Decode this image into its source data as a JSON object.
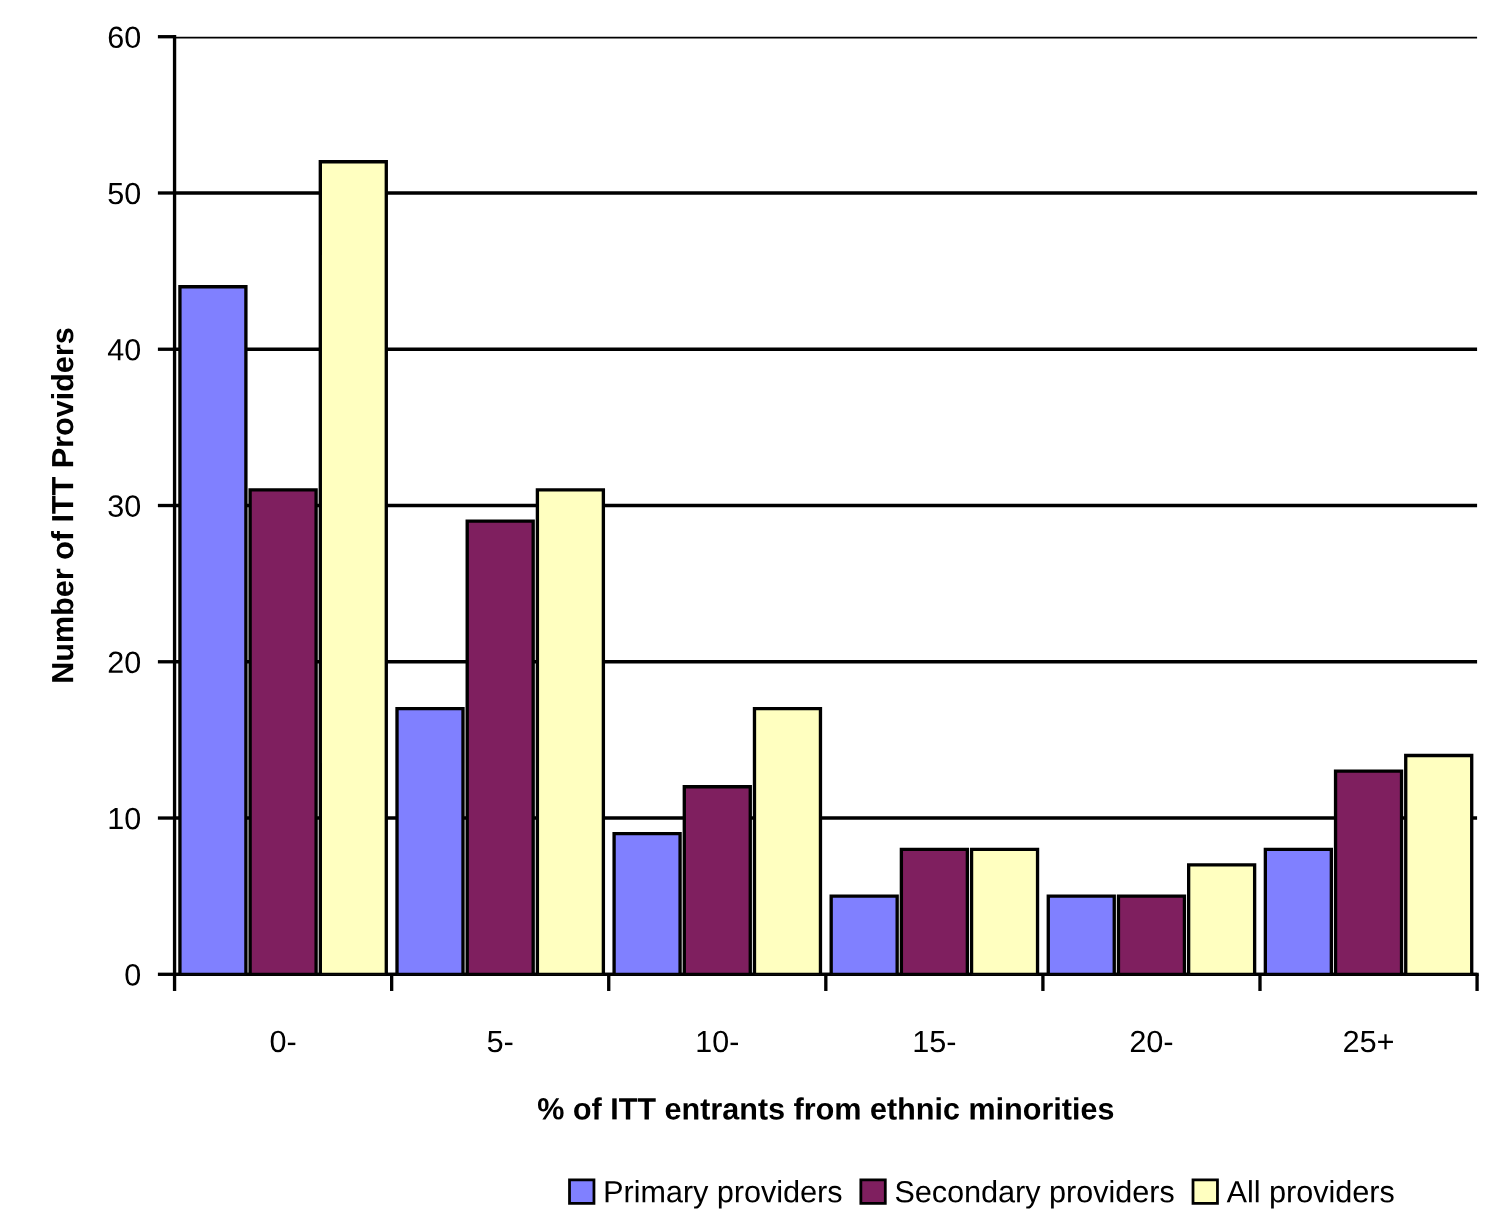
{
  "chart_data": {
    "type": "bar",
    "xlabel": "% of ITT entrants from ethnic minorities",
    "ylabel": "Number of ITT Providers",
    "categories": [
      "0-",
      "5-",
      "10-",
      "15-",
      "20-",
      "25+"
    ],
    "series": [
      {
        "name": "Primary providers",
        "color": "#8080ff",
        "values": [
          44,
          17,
          9,
          5,
          5,
          8
        ]
      },
      {
        "name": "Secondary providers",
        "color": "#7f1f5f",
        "values": [
          31,
          29,
          12,
          8,
          5,
          13
        ]
      },
      {
        "name": "All providers",
        "color": "#ffffc0",
        "values": [
          52,
          31,
          17,
          8,
          7,
          14
        ]
      }
    ],
    "ylim": [
      0,
      60
    ],
    "yticks": [
      0,
      10,
      20,
      30,
      40,
      50,
      60
    ],
    "grid": "y",
    "legend": "bottom"
  }
}
